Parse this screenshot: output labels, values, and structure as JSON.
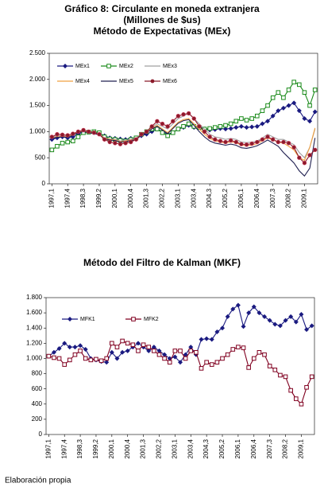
{
  "chart_data": [
    {
      "type": "line",
      "title": [
        "Gráfico 8: Circulante en moneda extranjera",
        "(Millones de $us)",
        "Método de Expectativas (MEx)"
      ],
      "categories": [
        "1997,1",
        null,
        null,
        "1997,4",
        null,
        null,
        "1998,3",
        null,
        null,
        "1999,2",
        null,
        null,
        "2000,1",
        null,
        null,
        "2000,4",
        null,
        null,
        "2001,3",
        null,
        null,
        "2002,2",
        null,
        null,
        "2003,1",
        null,
        null,
        "2003,4",
        null,
        null,
        "2004,3",
        null,
        null,
        "2005,2",
        null,
        null,
        "2006,1",
        null,
        null,
        "2006,4",
        null,
        null,
        "2007,3",
        null,
        null,
        "2008,2",
        null,
        null,
        "2009,1",
        null,
        null
      ],
      "ylim": [
        0,
        2500
      ],
      "yticks": [
        0,
        500,
        {
          "value": 1000,
          "label": "1.000"
        },
        {
          "value": 1500,
          "label": "1.500"
        },
        {
          "value": 2000,
          "label": "2.000"
        },
        {
          "value": 2500,
          "label": "2.500"
        }
      ],
      "legend": "top",
      "series": [
        {
          "name": "MEx1",
          "color": "#1a1a80",
          "marker": "diamond",
          "values": [
            850,
            880,
            900,
            880,
            900,
            950,
            1000,
            990,
            980,
            970,
            920,
            880,
            870,
            860,
            850,
            870,
            880,
            920,
            950,
            1000,
            1050,
            1000,
            950,
            980,
            1050,
            1080,
            1120,
            1080,
            1100,
            1050,
            1030,
            1040,
            1060,
            1050,
            1060,
            1080,
            1100,
            1080,
            1090,
            1100,
            1150,
            1200,
            1300,
            1400,
            1450,
            1500,
            1550,
            1400,
            1250,
            1200,
            1380
          ]
        },
        {
          "name": "MEx2",
          "color": "#1a8a1a",
          "marker": "open-square",
          "values": [
            650,
            720,
            780,
            800,
            820,
            900,
            980,
            990,
            1000,
            980,
            900,
            860,
            850,
            830,
            820,
            850,
            880,
            950,
            1000,
            1050,
            1050,
            980,
            920,
            980,
            1050,
            1100,
            1150,
            1100,
            1080,
            1050,
            1060,
            1080,
            1100,
            1120,
            1150,
            1200,
            1250,
            1220,
            1250,
            1300,
            1400,
            1500,
            1650,
            1750,
            1650,
            1800,
            1950,
            1900,
            1750,
            1500,
            1800
          ]
        },
        {
          "name": "MEx3",
          "color": "#a0a0a0",
          "marker": "none",
          "values": [
            900,
            920,
            930,
            920,
            950,
            1000,
            1020,
            1000,
            980,
            960,
            880,
            860,
            850,
            820,
            830,
            850,
            870,
            950,
            1000,
            1080,
            1150,
            1100,
            1050,
            1150,
            1250,
            1300,
            1350,
            1250,
            1150,
            1050,
            950,
            900,
            880,
            850,
            870,
            850,
            800,
            790,
            800,
            820,
            880,
            950,
            900,
            850,
            850,
            800,
            750,
            600,
            500,
            700,
            1050
          ]
        },
        {
          "name": "MEx4",
          "color": "#f0a040",
          "marker": "none",
          "values": [
            880,
            900,
            910,
            900,
            940,
            990,
            1010,
            990,
            970,
            950,
            870,
            850,
            840,
            810,
            820,
            840,
            860,
            940,
            990,
            1060,
            1120,
            1050,
            980,
            1080,
            1180,
            1230,
            1250,
            1150,
            1050,
            950,
            870,
            820,
            800,
            780,
            800,
            790,
            740,
            730,
            740,
            770,
            820,
            880,
            840,
            800,
            780,
            720,
            650,
            500,
            450,
            700,
            1070
          ]
        },
        {
          "name": "MEx5",
          "color": "#202050",
          "marker": "none",
          "values": [
            870,
            890,
            900,
            890,
            930,
            980,
            1000,
            980,
            960,
            940,
            860,
            840,
            830,
            800,
            810,
            830,
            850,
            930,
            980,
            1050,
            1100,
            1030,
            960,
            1060,
            1160,
            1210,
            1230,
            1120,
            1000,
            900,
            820,
            780,
            760,
            740,
            760,
            740,
            690,
            680,
            700,
            730,
            780,
            840,
            780,
            720,
            600,
            500,
            400,
            250,
            150,
            300,
            880
          ]
        },
        {
          "name": "MEx6",
          "color": "#8b1a2a",
          "marker": "circle",
          "values": [
            900,
            950,
            940,
            930,
            960,
            1000,
            1030,
            1000,
            980,
            950,
            850,
            800,
            780,
            760,
            780,
            800,
            850,
            950,
            1000,
            1100,
            1200,
            1150,
            1100,
            1200,
            1300,
            1330,
            1350,
            1250,
            1100,
            1000,
            900,
            850,
            820,
            800,
            830,
            800,
            760,
            750,
            770,
            800,
            850,
            900,
            850,
            800,
            800,
            780,
            700,
            500,
            400,
            550,
            650
          ]
        }
      ]
    },
    {
      "type": "line",
      "title": [
        "Método del Filtro de Kalman (MKF)"
      ],
      "categories": [
        "1997,1",
        null,
        null,
        "1997,4",
        null,
        null,
        "1998,3",
        null,
        null,
        "1999,2",
        null,
        null,
        "2000,1",
        null,
        null,
        "2000,4",
        null,
        null,
        "2001,3",
        null,
        null,
        "2002,2",
        null,
        null,
        "2003,1",
        null,
        null,
        "2003,4",
        null,
        null,
        "2004,3",
        null,
        null,
        "2005,2",
        null,
        null,
        "2006,1",
        null,
        null,
        "2006,4",
        null,
        null,
        "2007,3",
        null,
        null,
        "2008,2",
        null,
        null,
        "2009,1",
        null,
        null
      ],
      "ylim": [
        0,
        1800
      ],
      "yticks": [
        0,
        200,
        400,
        600,
        800,
        {
          "value": 1000,
          "label": "1.000"
        },
        {
          "value": 1200,
          "label": "1.200"
        },
        {
          "value": 1400,
          "label": "1.400"
        },
        {
          "value": 1600,
          "label": "1.600"
        },
        {
          "value": 1800,
          "label": "1.800"
        }
      ],
      "legend": "top",
      "series": [
        {
          "name": "MFK1",
          "color": "#1a1a80",
          "marker": "diamond",
          "values": [
            1030,
            1080,
            1130,
            1200,
            1150,
            1150,
            1170,
            1120,
            1000,
            980,
            960,
            950,
            1080,
            1000,
            1080,
            1100,
            1150,
            1200,
            1150,
            1100,
            1150,
            1100,
            1050,
            1000,
            1020,
            950,
            1050,
            1150,
            1050,
            1250,
            1260,
            1250,
            1350,
            1400,
            1550,
            1650,
            1700,
            1420,
            1600,
            1680,
            1600,
            1550,
            1500,
            1450,
            1430,
            1500,
            1550,
            1480,
            1580,
            1380,
            1430
          ]
        },
        {
          "name": "MFK2",
          "color": "#800020",
          "marker": "open-square",
          "values": [
            1030,
            1010,
            1000,
            920,
            980,
            1050,
            1100,
            1000,
            980,
            990,
            970,
            1000,
            1200,
            1150,
            1230,
            1200,
            1180,
            1100,
            1180,
            1150,
            1100,
            1050,
            1000,
            950,
            1100,
            1100,
            1000,
            1100,
            1080,
            870,
            950,
            920,
            950,
            1000,
            1050,
            1120,
            1150,
            1140,
            880,
            1000,
            1080,
            1050,
            900,
            850,
            780,
            760,
            580,
            470,
            400,
            620,
            760
          ]
        }
      ]
    }
  ],
  "source": "Elaboración propia"
}
